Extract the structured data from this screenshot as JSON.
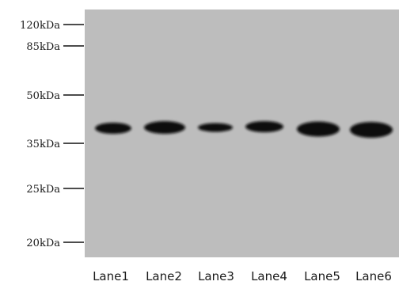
{
  "blot": {
    "membrane_color": "#bdbdbd",
    "band_color": "#111111",
    "markers": [
      {
        "label": "120kDa"
      },
      {
        "label": "85kDa"
      },
      {
        "label": "50kDa"
      },
      {
        "label": "35kDa"
      },
      {
        "label": "25kDa"
      },
      {
        "label": "20kDa"
      }
    ],
    "lanes": [
      {
        "label": "Lane1"
      },
      {
        "label": "Lane2"
      },
      {
        "label": "Lane3"
      },
      {
        "label": "Lane4"
      },
      {
        "label": "Lane5"
      },
      {
        "label": "Lane6"
      }
    ]
  }
}
